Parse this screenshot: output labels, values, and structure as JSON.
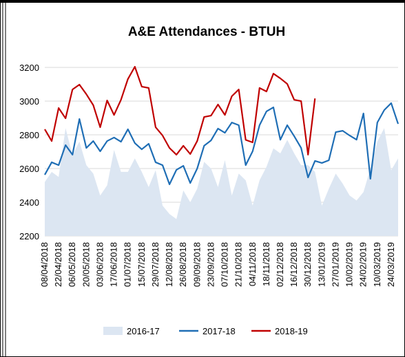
{
  "chart_data": {
    "type": "line",
    "title": "A&E Attendances - BTUH",
    "categories": [
      "08/04/2018",
      null,
      "22/04/2018",
      null,
      "06/05/2018",
      null,
      "20/05/2018",
      null,
      "03/06/2018",
      null,
      "17/06/2018",
      null,
      "01/07/2018",
      null,
      "15/07/2018",
      null,
      "29/07/2018",
      null,
      "12/08/2018",
      null,
      "26/08/2018",
      null,
      "09/09/2018",
      null,
      "23/09/2018",
      null,
      "07/10/2018",
      null,
      "21/10/2018",
      null,
      "04/11/2018",
      null,
      "18/11/2018",
      null,
      "02/12/2018",
      null,
      "16/12/2018",
      null,
      "30/12/2018",
      null,
      "13/01/2019",
      null,
      "27/01/2019",
      null,
      "10/02/2019",
      null,
      "24/02/2019",
      null,
      "10/03/2019",
      null,
      "24/03/2019",
      null
    ],
    "series": [
      {
        "name": "2016-17",
        "style": "area",
        "color": "#dce6f2",
        "values": [
          2520,
          2580,
          2550,
          2840,
          2680,
          2760,
          2620,
          2570,
          2440,
          2500,
          2710,
          2580,
          2580,
          2660,
          2580,
          2490,
          2590,
          2380,
          2330,
          2300,
          2470,
          2400,
          2480,
          2640,
          2600,
          2490,
          2650,
          2440,
          2570,
          2530,
          2380,
          2530,
          2610,
          2720,
          2690,
          2770,
          2690,
          2620,
          2620,
          2580,
          2380,
          2480,
          2570,
          2510,
          2440,
          2410,
          2460,
          2600,
          2760,
          2840,
          2590,
          2660
        ]
      },
      {
        "name": "2017-18",
        "style": "line",
        "color": "#1f6eb5",
        "values": [
          2563,
          2637,
          2620,
          2739,
          2682,
          2894,
          2722,
          2763,
          2702,
          2763,
          2784,
          2759,
          2833,
          2751,
          2714,
          2747,
          2637,
          2620,
          2506,
          2592,
          2616,
          2514,
          2600,
          2735,
          2767,
          2837,
          2812,
          2873,
          2857,
          2620,
          2702,
          2857,
          2939,
          2963,
          2771,
          2857,
          2792,
          2722,
          2547,
          2645,
          2633,
          2649,
          2816,
          2824,
          2796,
          2771,
          2927,
          2539,
          2873,
          2947,
          2988,
          2865
        ]
      },
      {
        "name": "2018-19",
        "style": "line",
        "color": "#c00000",
        "values": [
          2833,
          2763,
          2959,
          2898,
          3069,
          3098,
          3041,
          2976,
          2845,
          3004,
          2918,
          3008,
          3131,
          3204,
          3086,
          3078,
          2845,
          2796,
          2722,
          2682,
          2735,
          2686,
          2763,
          2906,
          2914,
          2980,
          2918,
          3029,
          3069,
          2770,
          2755,
          3078,
          3057,
          3163,
          3135,
          3102,
          3008,
          3000,
          2682,
          3016,
          null,
          null,
          null,
          null,
          null,
          null,
          null,
          null,
          null,
          null,
          null,
          null
        ]
      }
    ],
    "ylim": [
      2200,
      3200
    ],
    "yticks": [
      2200,
      2400,
      2600,
      2800,
      3000,
      3200
    ],
    "grid": true,
    "legend": "bottom"
  }
}
